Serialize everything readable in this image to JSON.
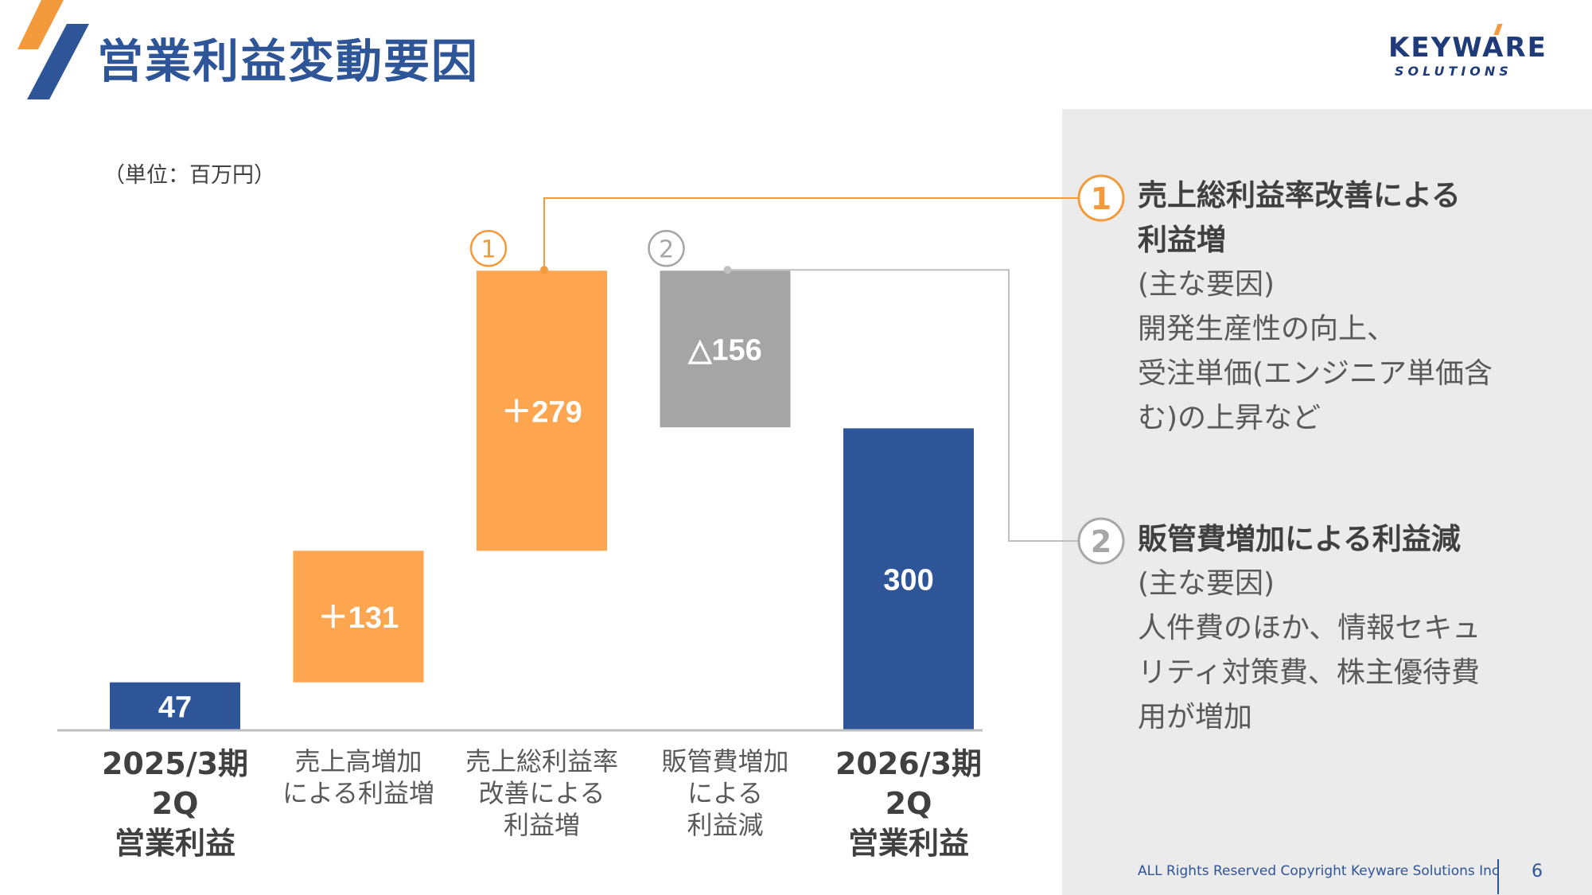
{
  "title": "営業利益変動要因",
  "unit_label": "（単位：百万円）",
  "brand": {
    "name": "KEYWARE",
    "sub": "SOLUTIONS"
  },
  "colors": {
    "navy": "#2E5597",
    "orange": "#FDA54F",
    "gray": "#A5A5A5",
    "accent_orange": "#F39A3C"
  },
  "chart_data": {
    "type": "bar",
    "subtype": "waterfall",
    "categories": [
      "2025/3期 2Q\n営業利益",
      "売上高増加\nによる利益増",
      "売上総利益率\n改善による\n利益増",
      "販管費増加\nによる\n利益減",
      "2026/3期 2Q\n営業利益"
    ],
    "values": [
      47,
      131,
      279,
      -156,
      300
    ],
    "kinds": [
      "total",
      "increase",
      "increase",
      "decrease",
      "total"
    ],
    "data_labels": [
      "47",
      "＋131",
      "＋279",
      "△156",
      "300"
    ],
    "markers": [
      "",
      "",
      "1",
      "2",
      ""
    ],
    "ylim": [
      0,
      460
    ]
  },
  "notes": [
    {
      "num": "1",
      "title": "売上総利益率改善による\n利益増",
      "body": "(主な要因)\n開発生産性の向上、\n受注単価(エンジニア単価含\nむ)の上昇など"
    },
    {
      "num": "2",
      "title": "販管費増加による利益減",
      "body": "(主な要因)\n人件費のほか、情報セキュ\nリティ対策費、株主優待費\n用が増加"
    }
  ],
  "footer": "ALL Rights Reserved Copyright Keyware Solutions Inc",
  "page_number": "6"
}
